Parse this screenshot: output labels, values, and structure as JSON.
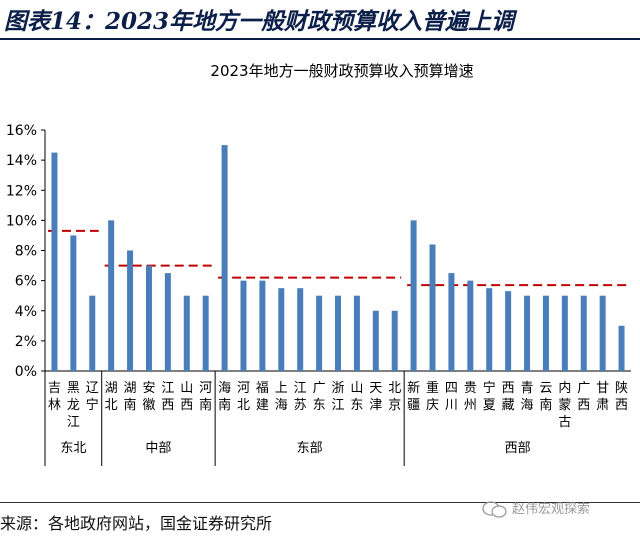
{
  "header": {
    "title": "图表14：2023年地方一般财政预算收入普遍上调"
  },
  "footer": {
    "source": "来源：各地政府网站，国金证券研究所",
    "watermark": "赵伟宏观探索"
  },
  "colors": {
    "bar": "#4a7ebb",
    "avg": "#c00000",
    "title": "#0c1f4a"
  },
  "chart_data": {
    "type": "bar",
    "title": "2023年地方一般财政预算收入预算增速",
    "categories": [
      "吉林",
      "黑龙江",
      "辽宁",
      "湖北",
      "湖南",
      "安徽",
      "江西",
      "山西",
      "河南",
      "海南",
      "河北",
      "福建",
      "上海",
      "江苏",
      "广东",
      "浙江",
      "山东",
      "天津",
      "北京",
      "新疆",
      "重庆",
      "四川",
      "贵州",
      "宁夏",
      "西藏",
      "青海",
      "云南",
      "内蒙古",
      "广西",
      "甘肃",
      "陕西"
    ],
    "values": [
      14.5,
      9.0,
      5.0,
      10.0,
      8.0,
      7.0,
      6.5,
      5.0,
      5.0,
      15.0,
      6.0,
      6.0,
      5.5,
      5.5,
      5.0,
      5.0,
      5.0,
      4.0,
      4.0,
      10.0,
      8.4,
      6.5,
      6.0,
      5.5,
      5.3,
      5.0,
      5.0,
      5.0,
      5.0,
      5.0,
      3.0
    ],
    "ylim": [
      0,
      16
    ],
    "yticks": [
      "0%",
      "2%",
      "4%",
      "6%",
      "8%",
      "10%",
      "12%",
      "14%",
      "16%"
    ],
    "groups": [
      {
        "name": "东北",
        "start": 0,
        "end": 2,
        "average": 9.3
      },
      {
        "name": "中部",
        "start": 3,
        "end": 8,
        "average": 7.0
      },
      {
        "name": "东部",
        "start": 9,
        "end": 18,
        "average": 6.2
      },
      {
        "name": "西部",
        "start": 19,
        "end": 30,
        "average": 5.7
      }
    ]
  }
}
